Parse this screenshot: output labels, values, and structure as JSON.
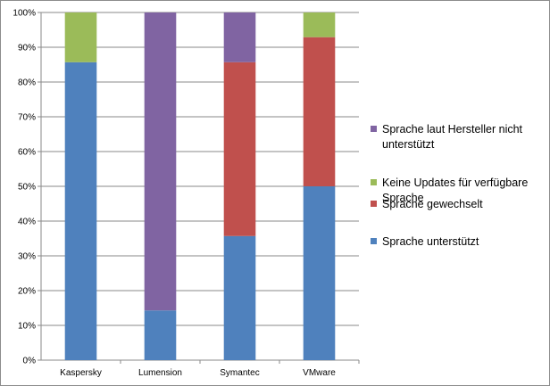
{
  "chart_data": {
    "type": "bar",
    "stacked": true,
    "percent_stacked": true,
    "categories": [
      "Kaspersky",
      "Lumension",
      "Symantec",
      "VMware"
    ],
    "series": [
      {
        "name": "Sprache unterstützt",
        "color": "#4f81bd",
        "values": [
          85.7,
          14.3,
          35.7,
          50.0
        ]
      },
      {
        "name": "Sprache gewechselt",
        "color": "#c0504d",
        "values": [
          0,
          0,
          50.0,
          42.9
        ]
      },
      {
        "name": "Keine Updates für verfügbare Sprache",
        "color": "#9bbb59",
        "values": [
          14.3,
          0,
          0,
          7.1
        ]
      },
      {
        "name": "Sprache laut Hersteller nicht unterstützt",
        "color": "#8064a2",
        "values": [
          0,
          85.7,
          14.3,
          0
        ]
      }
    ],
    "yticks": [
      "0%",
      "10%",
      "20%",
      "30%",
      "40%",
      "50%",
      "60%",
      "70%",
      "80%",
      "90%",
      "100%"
    ],
    "ylim": [
      0,
      100
    ],
    "grid": true,
    "legend_position": "right",
    "title": "",
    "xlabel": "",
    "ylabel": ""
  }
}
